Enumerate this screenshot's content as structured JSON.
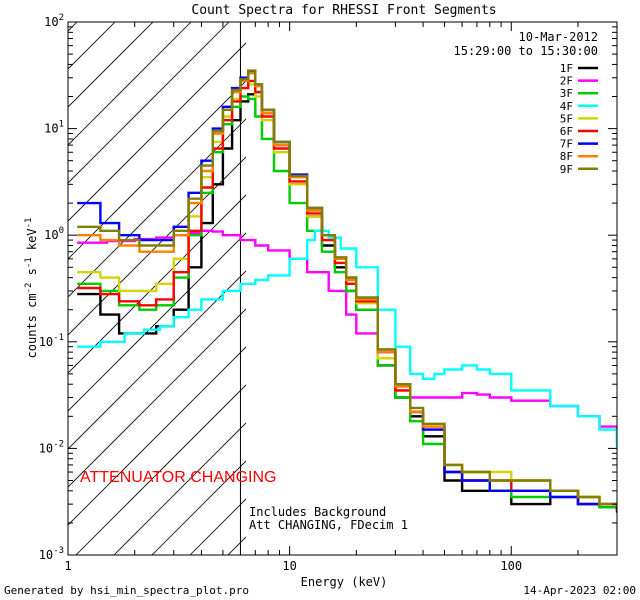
{
  "chart_data": {
    "type": "line",
    "title": "Count Spectra for RHESSI Front Segments",
    "xlabel": "Energy (keV)",
    "ylabel_parts": [
      "counts cm",
      "-2",
      " s",
      "-1",
      " keV",
      "-1"
    ],
    "xlim": [
      1,
      300
    ],
    "ylim": [
      0.001,
      100
    ],
    "xscale": "log",
    "yscale": "log",
    "x_ticks": [
      {
        "value": 10,
        "label": "10"
      },
      {
        "value": 100,
        "label": "100"
      }
    ],
    "y_ticks": [
      {
        "value": 100,
        "mant": "10",
        "exp": "2"
      },
      {
        "value": 10,
        "mant": "10",
        "exp": "1"
      },
      {
        "value": 1,
        "mant": "10",
        "exp": "0"
      },
      {
        "value": 0.1,
        "mant": "10",
        "exp": "-1"
      },
      {
        "value": 0.01,
        "mant": "10",
        "exp": "-2"
      },
      {
        "value": 0.001,
        "mant": "10",
        "exp": "-3"
      }
    ],
    "date": "10-Mar-2012",
    "time_range": "15:29:00 to 15:30:00",
    "attenuator_label": "ATTENUATOR CHANGING",
    "attenuator_region_x": [
      1,
      6
    ],
    "background_note": "Includes Background",
    "att_note": "Att CHANGING, FDecim  1",
    "series": [
      {
        "name": "1F",
        "color": "#000000",
        "x": [
          1.1,
          1.4,
          1.7,
          2.1,
          2.5,
          3.0,
          3.5,
          4.0,
          4.5,
          5.0,
          5.5,
          6.0,
          6.5,
          7.0,
          7.5,
          8.5,
          10,
          12,
          14,
          16,
          18,
          20,
          25,
          30,
          35,
          40,
          50,
          60,
          80,
          100,
          150,
          200,
          250,
          300
        ],
        "y": [
          0.28,
          0.18,
          0.12,
          0.12,
          0.14,
          0.2,
          0.5,
          1.3,
          3,
          6.5,
          12,
          18,
          21,
          22,
          14,
          7,
          3,
          1.5,
          0.8,
          0.5,
          0.3,
          0.2,
          0.06,
          0.03,
          0.02,
          0.013,
          0.005,
          0.004,
          0.004,
          0.003,
          0.004,
          0.003,
          0.0028,
          0.0025
        ]
      },
      {
        "name": "2F",
        "color": "#ff00ff",
        "x": [
          1.1,
          1.5,
          2.0,
          2.5,
          3.0,
          3.5,
          4.0,
          4.5,
          5.0,
          6.0,
          7.0,
          8.0,
          10,
          12,
          15,
          18,
          20,
          25,
          30,
          35,
          40,
          50,
          60,
          70,
          80,
          100,
          150,
          200,
          250,
          300
        ],
        "y": [
          0.85,
          0.88,
          0.92,
          0.95,
          1.0,
          1.05,
          1.1,
          1.08,
          1.0,
          0.9,
          0.8,
          0.72,
          0.6,
          0.45,
          0.3,
          0.18,
          0.12,
          0.06,
          0.035,
          0.03,
          0.03,
          0.03,
          0.033,
          0.032,
          0.03,
          0.028,
          0.025,
          0.02,
          0.016,
          0.011
        ]
      },
      {
        "name": "3F",
        "color": "#00cc00",
        "x": [
          1.1,
          1.4,
          1.7,
          2.1,
          2.5,
          3.0,
          3.5,
          4.0,
          4.5,
          5.0,
          5.5,
          6.0,
          6.5,
          7.0,
          7.5,
          8.5,
          10,
          12,
          14,
          16,
          18,
          20,
          25,
          30,
          35,
          40,
          50,
          60,
          80,
          100,
          150,
          200,
          250,
          300
        ],
        "y": [
          0.35,
          0.3,
          0.22,
          0.2,
          0.22,
          0.4,
          1,
          2.5,
          6,
          11,
          16,
          20,
          19,
          13,
          8,
          4,
          2,
          1.1,
          0.7,
          0.45,
          0.3,
          0.2,
          0.06,
          0.03,
          0.018,
          0.011,
          0.006,
          0.005,
          0.004,
          0.0035,
          0.0035,
          0.003,
          0.0028,
          0.0026
        ]
      },
      {
        "name": "4F",
        "color": "#00ffff",
        "x": [
          1.1,
          1.4,
          1.8,
          2.2,
          2.6,
          3.0,
          3.5,
          4.0,
          5.0,
          6.0,
          7.0,
          8.0,
          10,
          12,
          13,
          15,
          17,
          20,
          25,
          30,
          35,
          40,
          45,
          50,
          60,
          70,
          80,
          100,
          150,
          200,
          250,
          300
        ],
        "y": [
          0.09,
          0.1,
          0.12,
          0.13,
          0.14,
          0.17,
          0.2,
          0.25,
          0.3,
          0.35,
          0.38,
          0.42,
          0.6,
          0.9,
          1.1,
          0.95,
          0.75,
          0.5,
          0.2,
          0.09,
          0.05,
          0.045,
          0.05,
          0.055,
          0.06,
          0.055,
          0.05,
          0.035,
          0.025,
          0.02,
          0.015,
          0.01
        ]
      },
      {
        "name": "5F",
        "color": "#d4d400",
        "x": [
          1.1,
          1.4,
          1.7,
          2.1,
          2.5,
          3.0,
          3.5,
          4.0,
          4.5,
          5.0,
          5.5,
          6.0,
          6.5,
          7.0,
          7.5,
          8.5,
          10,
          12,
          14,
          16,
          18,
          20,
          25,
          30,
          35,
          40,
          50,
          60,
          80,
          100,
          150,
          200,
          250,
          300
        ],
        "y": [
          0.45,
          0.4,
          0.3,
          0.3,
          0.35,
          0.6,
          1.5,
          3.5,
          7.5,
          13,
          19,
          24,
          26,
          20,
          12,
          6,
          3,
          1.5,
          0.9,
          0.55,
          0.35,
          0.23,
          0.07,
          0.035,
          0.022,
          0.016,
          0.007,
          0.006,
          0.006,
          0.005,
          0.004,
          0.0035,
          0.003,
          0.0028
        ]
      },
      {
        "name": "6F",
        "color": "#ff0000",
        "x": [
          1.1,
          1.4,
          1.7,
          2.1,
          2.5,
          3.0,
          3.5,
          4.0,
          4.5,
          5.0,
          5.5,
          6.0,
          6.5,
          7.0,
          7.5,
          8.5,
          10,
          12,
          14,
          16,
          18,
          20,
          25,
          30,
          35,
          40,
          50,
          60,
          80,
          100,
          150,
          200,
          250,
          300
        ],
        "y": [
          0.32,
          0.28,
          0.24,
          0.22,
          0.25,
          0.45,
          1.1,
          2.8,
          6.5,
          12,
          18,
          24,
          28,
          22,
          13,
          6.5,
          3.2,
          1.6,
          0.9,
          0.55,
          0.35,
          0.24,
          0.08,
          0.035,
          0.022,
          0.015,
          0.006,
          0.005,
          0.005,
          0.004,
          0.004,
          0.003,
          0.003,
          0.0026
        ]
      },
      {
        "name": "7F",
        "color": "#0000ff",
        "x": [
          1.1,
          1.4,
          1.7,
          2.1,
          2.5,
          3.0,
          3.5,
          4.0,
          4.5,
          5.0,
          5.5,
          6.0,
          6.5,
          7.0,
          7.5,
          8.5,
          10,
          12,
          14,
          16,
          18,
          20,
          25,
          30,
          35,
          40,
          50,
          60,
          80,
          100,
          150,
          200,
          250,
          300
        ],
        "y": [
          2.0,
          1.3,
          1.0,
          0.9,
          0.9,
          1.2,
          2.5,
          5,
          10,
          16,
          24,
          30,
          34,
          26,
          15,
          7.5,
          3.7,
          1.8,
          1.0,
          0.6,
          0.4,
          0.26,
          0.08,
          0.04,
          0.022,
          0.015,
          0.006,
          0.005,
          0.004,
          0.004,
          0.0035,
          0.003,
          0.003,
          0.0027
        ]
      },
      {
        "name": "8F",
        "color": "#ff8000",
        "x": [
          1.1,
          1.4,
          1.7,
          2.1,
          2.5,
          3.0,
          3.5,
          4.0,
          4.5,
          5.0,
          5.5,
          6.0,
          6.5,
          7.0,
          7.5,
          8.5,
          10,
          12,
          14,
          16,
          18,
          20,
          25,
          30,
          35,
          40,
          50,
          60,
          80,
          100,
          150,
          200,
          250,
          300
        ],
        "y": [
          1.0,
          0.9,
          0.8,
          0.7,
          0.7,
          1.0,
          2.0,
          4,
          9,
          15,
          22,
          28,
          33,
          25,
          14,
          7,
          3.5,
          1.7,
          1.0,
          0.6,
          0.38,
          0.25,
          0.08,
          0.038,
          0.022,
          0.016,
          0.007,
          0.006,
          0.005,
          0.005,
          0.004,
          0.0035,
          0.003,
          0.0028
        ]
      },
      {
        "name": "9F",
        "color": "#808000",
        "x": [
          1.1,
          1.4,
          1.7,
          2.1,
          2.5,
          3.0,
          3.5,
          4.0,
          4.5,
          5.0,
          5.5,
          6.0,
          6.5,
          7.0,
          7.5,
          8.5,
          10,
          12,
          14,
          16,
          18,
          20,
          25,
          30,
          35,
          40,
          50,
          60,
          80,
          100,
          150,
          200,
          250,
          300
        ],
        "y": [
          1.2,
          1.1,
          0.9,
          0.8,
          0.8,
          1.1,
          2.2,
          4.5,
          9.5,
          15,
          23,
          29,
          35,
          26,
          15,
          7.5,
          3.6,
          1.8,
          1.0,
          0.62,
          0.4,
          0.26,
          0.085,
          0.04,
          0.024,
          0.017,
          0.007,
          0.006,
          0.005,
          0.005,
          0.004,
          0.0035,
          0.003,
          0.0028
        ]
      }
    ]
  },
  "footer": {
    "generated_by": "Generated by hsi_min_spectra_plot.pro",
    "date": "14-Apr-2023 02:00"
  }
}
